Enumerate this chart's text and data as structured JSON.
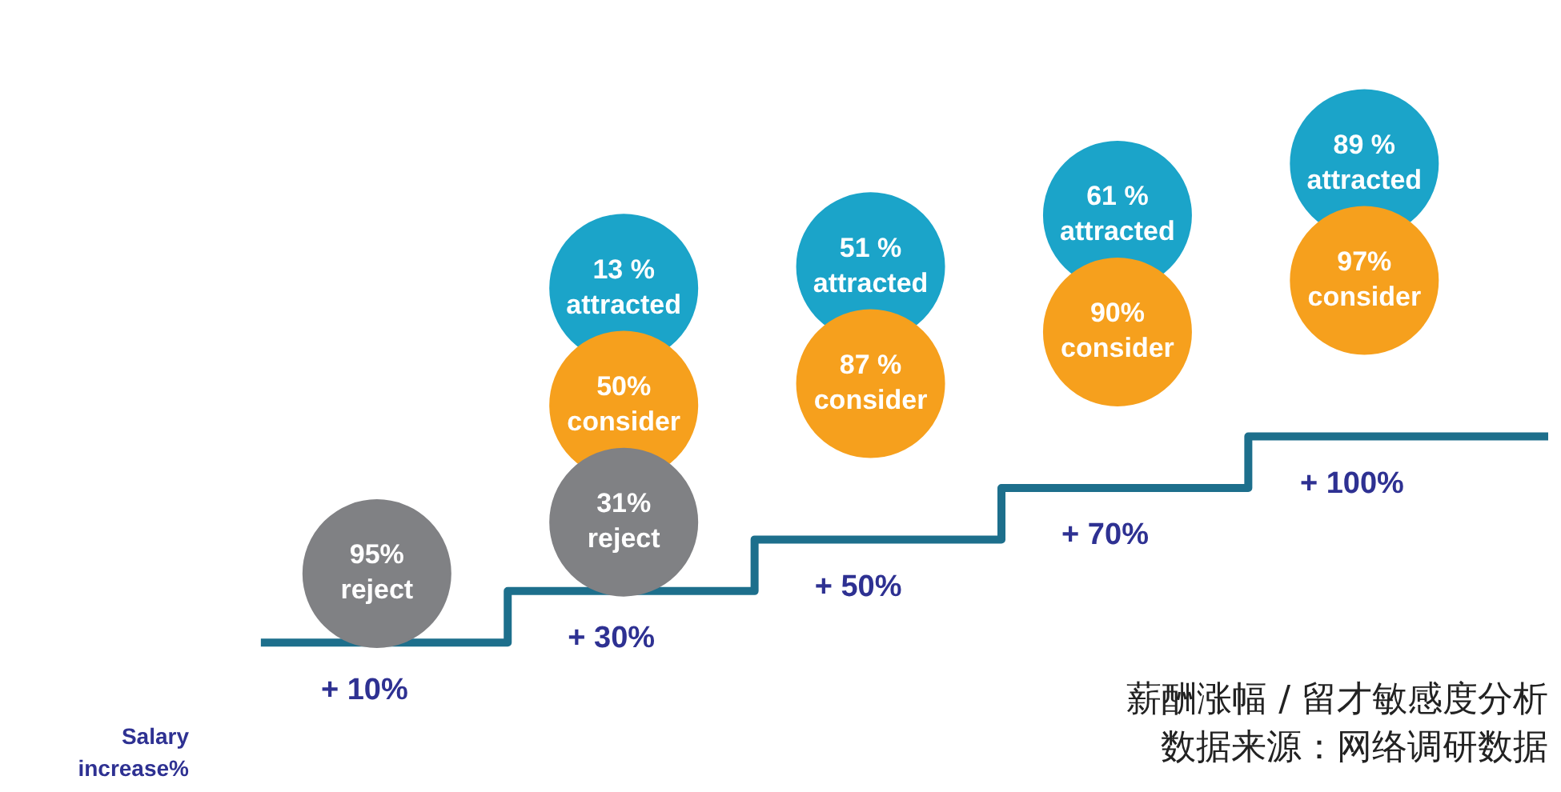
{
  "chart_data": {
    "type": "other",
    "xlabel": "Salary increase%",
    "categories": [
      "+ 10%",
      "+ 30%",
      "+ 50%",
      "+ 70%",
      "+ 100%"
    ],
    "series": [
      {
        "name": "reject",
        "color": "#808184",
        "values": [
          95,
          31,
          null,
          null,
          null
        ],
        "value_labels": [
          "95%",
          "31%",
          null,
          null,
          null
        ]
      },
      {
        "name": "consider",
        "color": "#f6a01d",
        "values": [
          null,
          50,
          87,
          90,
          97
        ],
        "value_labels": [
          null,
          "50%",
          "87 %",
          "90%",
          "97%"
        ]
      },
      {
        "name": "attracted",
        "color": "#1ba4c9",
        "values": [
          null,
          13,
          51,
          61,
          89
        ],
        "value_labels": [
          null,
          "13 %",
          "51 %",
          "61 %",
          "89 %"
        ]
      }
    ],
    "annotations": [
      "薪酬涨幅 / 留才敏感度分析",
      "数据来源：网络调研数据"
    ]
  }
}
